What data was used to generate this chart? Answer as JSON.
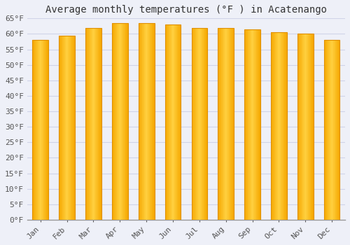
{
  "title": "Average monthly temperatures (°F ) in Acatenango",
  "months": [
    "Jan",
    "Feb",
    "Mar",
    "Apr",
    "May",
    "Jun",
    "Jul",
    "Aug",
    "Sep",
    "Oct",
    "Nov",
    "Dec"
  ],
  "values": [
    58,
    59.5,
    62,
    63.5,
    63.5,
    63,
    62,
    62,
    61.5,
    60.5,
    60,
    58
  ],
  "ylim": [
    0,
    65
  ],
  "ytick_step": 5,
  "bar_color_left": "#F5A800",
  "bar_color_center": "#FFD040",
  "bar_color_right": "#F5A800",
  "bar_edge_color": "#E09000",
  "background_color": "#EEF0F8",
  "plot_bg_color": "#EEF0F8",
  "grid_color": "#D0D4E8",
  "title_fontsize": 10,
  "tick_fontsize": 8,
  "font_family": "monospace"
}
